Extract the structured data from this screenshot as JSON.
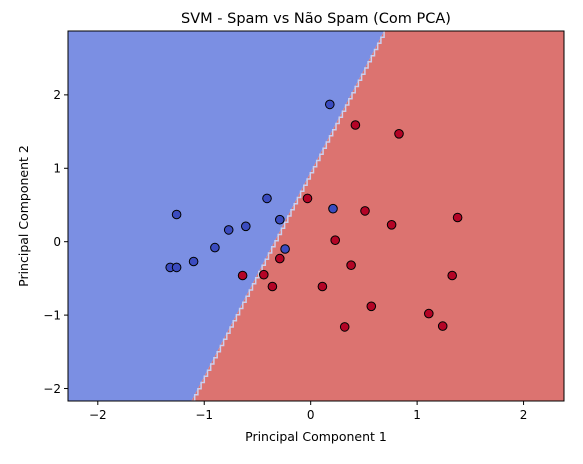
{
  "chart_data": {
    "type": "scatter",
    "title": "SVM - Spam vs Não Spam (Com PCA)",
    "xlabel": "Principal Component 1",
    "ylabel": "Principal Component 2",
    "xlim": [
      -2.28,
      2.38
    ],
    "ylim": [
      -2.17,
      2.87
    ],
    "xticks": [
      -2,
      -1,
      0,
      1,
      2
    ],
    "yticks": [
      -2,
      -1,
      0,
      1,
      2
    ],
    "grid": false,
    "legend": "none",
    "decision_boundary": [
      [
        -1.12,
        -2.17
      ],
      [
        0.69,
        2.87
      ]
    ],
    "region_colors": {
      "left": "#7b8fe3",
      "right": "#dc7370",
      "boundary": "#c8d0f0"
    },
    "series": [
      {
        "color": "#3b4cc0",
        "points": [
          [
            -1.26,
            0.37
          ],
          [
            -1.32,
            -0.35
          ],
          [
            -1.26,
            -0.35
          ],
          [
            -1.1,
            -0.27
          ],
          [
            -0.9,
            -0.08
          ],
          [
            -0.77,
            0.16
          ],
          [
            -0.61,
            0.21
          ],
          [
            -0.41,
            0.59
          ],
          [
            -0.29,
            0.3
          ],
          [
            -0.24,
            -0.1
          ],
          [
            0.18,
            1.87
          ],
          [
            0.21,
            0.45
          ]
        ]
      },
      {
        "color": "#b40426",
        "points": [
          [
            0.42,
            1.59
          ],
          [
            0.83,
            1.47
          ],
          [
            -0.03,
            0.59
          ],
          [
            0.51,
            0.42
          ],
          [
            0.76,
            0.23
          ],
          [
            1.38,
            0.33
          ],
          [
            0.23,
            0.02
          ],
          [
            -0.64,
            -0.46
          ],
          [
            -0.44,
            -0.45
          ],
          [
            -0.29,
            -0.23
          ],
          [
            -0.36,
            -0.61
          ],
          [
            0.38,
            -0.32
          ],
          [
            0.11,
            -0.61
          ],
          [
            0.57,
            -0.88
          ],
          [
            1.33,
            -0.46
          ],
          [
            0.32,
            -1.16
          ],
          [
            1.11,
            -0.98
          ],
          [
            1.24,
            -1.15
          ]
        ]
      }
    ]
  }
}
